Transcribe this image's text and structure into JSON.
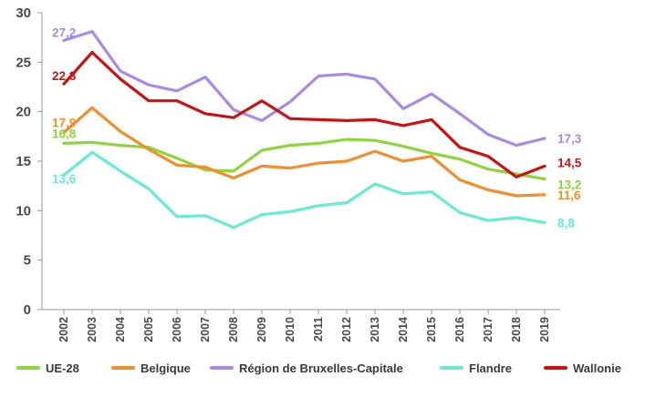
{
  "chart_data": {
    "type": "line",
    "categories": [
      "2002",
      "2003",
      "2004",
      "2005",
      "2006",
      "2007",
      "2008",
      "2009",
      "2010",
      "2011",
      "2012",
      "2013",
      "2014",
      "2015",
      "2016",
      "2017",
      "2018",
      "2019"
    ],
    "ylim": [
      0,
      30
    ],
    "yticks": [
      "0",
      "5",
      "10",
      "15",
      "20",
      "25",
      "30"
    ],
    "grid": false,
    "legend_position": "bottom",
    "series": [
      {
        "name": "UE-28",
        "color": "#8cd63c",
        "values": [
          16.8,
          16.9,
          16.6,
          16.4,
          15.3,
          14.1,
          14.0,
          16.1,
          16.6,
          16.8,
          17.2,
          17.1,
          16.5,
          15.8,
          15.2,
          14.2,
          13.7,
          13.2
        ],
        "start_label": "16,8",
        "end_label": "13,2"
      },
      {
        "name": "Belgique",
        "color": "#f28e2b",
        "values": [
          17.9,
          20.4,
          18.0,
          16.2,
          14.6,
          14.4,
          13.3,
          14.5,
          14.3,
          14.8,
          15.0,
          16.0,
          15.0,
          15.5,
          13.1,
          12.1,
          11.5,
          11.6
        ],
        "start_label": "17,9",
        "end_label": "11,6"
      },
      {
        "name": "Région de Bruxelles-Capitale",
        "color": "#a98ae6",
        "values": [
          27.2,
          28.1,
          24.1,
          22.7,
          22.1,
          23.5,
          20.2,
          19.1,
          21.0,
          23.6,
          23.8,
          23.3,
          20.3,
          21.8,
          19.8,
          17.7,
          16.6,
          17.3
        ],
        "start_label": "27,2",
        "end_label": "17,3"
      },
      {
        "name": "Flandre",
        "color": "#66ecd4",
        "values": [
          13.6,
          15.9,
          14.0,
          12.2,
          9.4,
          9.5,
          8.3,
          9.6,
          9.9,
          10.5,
          10.8,
          12.7,
          11.7,
          11.9,
          9.8,
          9.0,
          9.3,
          8.8
        ],
        "start_label": "13,6",
        "end_label": "8,8"
      },
      {
        "name": "Wallonie",
        "color": "#cc1111",
        "values": [
          22.8,
          26.0,
          23.3,
          21.1,
          21.1,
          19.8,
          19.4,
          21.1,
          19.3,
          19.2,
          19.1,
          19.2,
          18.6,
          19.2,
          16.4,
          15.5,
          13.4,
          14.5
        ],
        "start_label": "22,8",
        "end_label": "14,5"
      }
    ]
  }
}
